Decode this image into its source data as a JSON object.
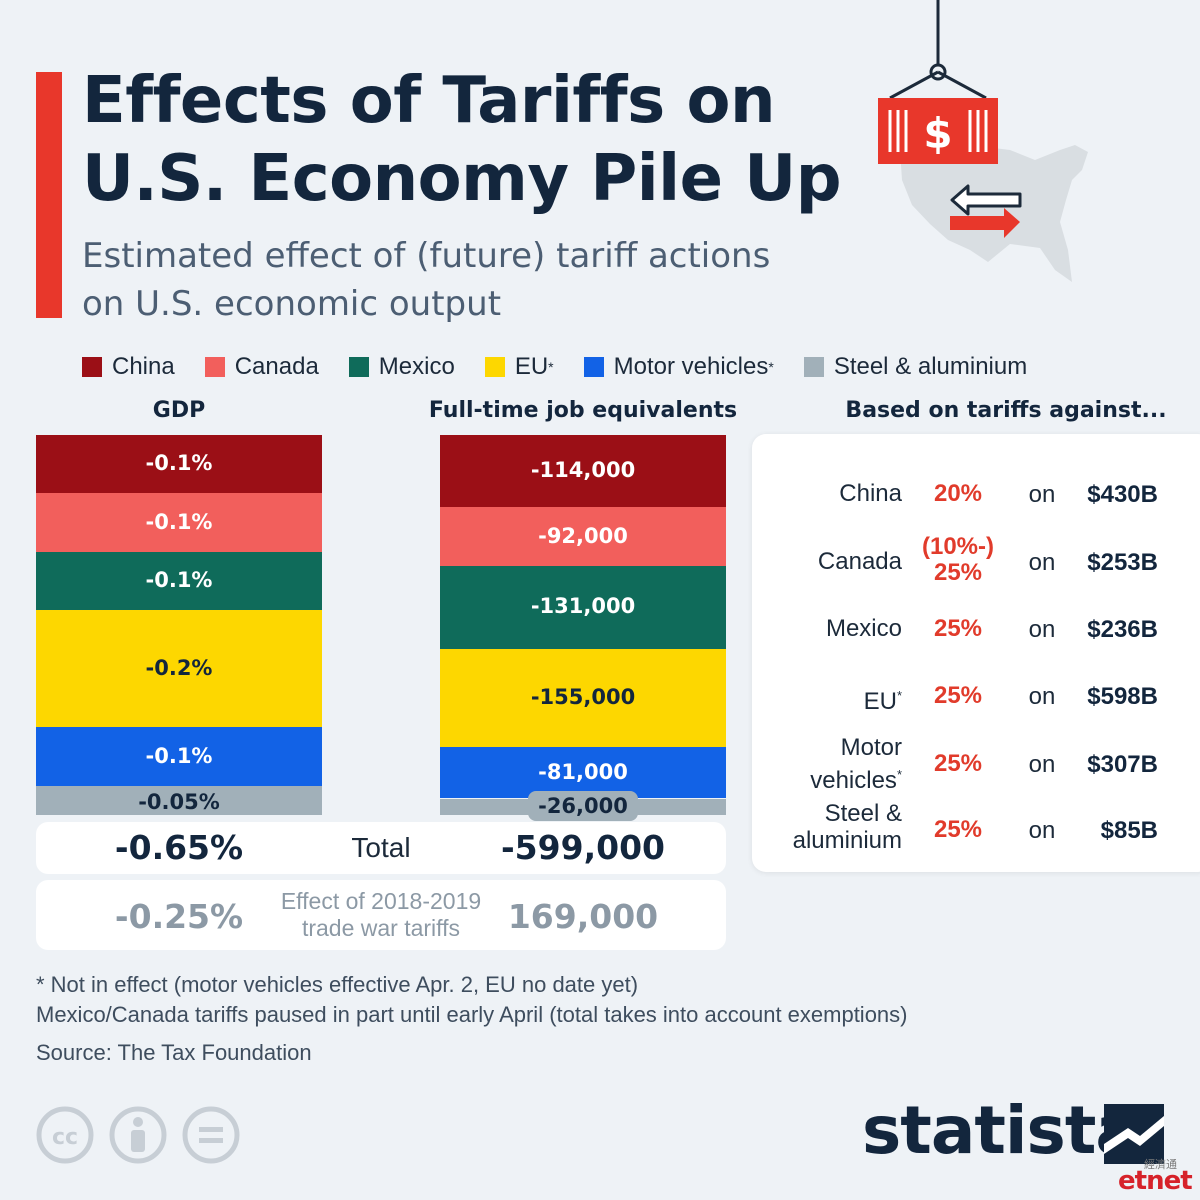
{
  "header": {
    "title_line1": "Effects of Tariffs on",
    "title_line2": "U.S. Economy Pile Up",
    "subtitle_line1": "Estimated effect of (future) tariff actions",
    "subtitle_line2": "on U.S. economic output"
  },
  "legend": [
    {
      "label": "China",
      "star": "",
      "color": "#9b0f16"
    },
    {
      "label": "Canada",
      "star": "",
      "color": "#f25f5c"
    },
    {
      "label": "Mexico",
      "star": "",
      "color": "#0f6b5a"
    },
    {
      "label": "EU",
      "star": "*",
      "color": "#fdd700"
    },
    {
      "label": "Motor vehicles",
      "star": "*",
      "color": "#1262e6"
    },
    {
      "label": "Steel & aluminium",
      "star": "",
      "color": "#a1b0b9"
    }
  ],
  "chart_data": [
    {
      "type": "bar",
      "title": "GDP",
      "categories": [
        "China",
        "Canada",
        "Mexico",
        "EU",
        "Motor vehicles",
        "Steel & aluminium"
      ],
      "values": [
        -0.1,
        -0.1,
        -0.1,
        -0.2,
        -0.1,
        -0.05
      ],
      "labels": [
        "-0.1%",
        "-0.1%",
        "-0.1%",
        "-0.2%",
        "-0.1%",
        "-0.05%"
      ],
      "total_label": "-0.65%",
      "trade_war_label": "-0.25%"
    },
    {
      "type": "bar",
      "title": "Full-time job equivalents",
      "categories": [
        "China",
        "Canada",
        "Mexico",
        "EU",
        "Motor vehicles",
        "Steel & aluminium"
      ],
      "values": [
        -114000,
        -92000,
        -131000,
        -155000,
        -81000,
        -26000
      ],
      "labels": [
        "-114,000",
        "-92,000",
        "-131,000",
        "-155,000",
        "-81,000",
        "-26,000"
      ],
      "total_label": "-599,000",
      "trade_war_label": "169,000"
    }
  ],
  "totals": {
    "label": "Total",
    "trade_war_line1": "Effect of 2018-2019",
    "trade_war_line2": "trade war tariffs"
  },
  "tariffs": {
    "heading": "Based on tariffs against...",
    "on_word": "on",
    "rows": [
      {
        "name1": "China",
        "name2": "",
        "star": "",
        "pct1": "20%",
        "pct2": "",
        "amount": "$430B"
      },
      {
        "name1": "Canada",
        "name2": "",
        "star": "",
        "pct1": "(10%-)",
        "pct2": "25%",
        "amount": "$253B"
      },
      {
        "name1": "Mexico",
        "name2": "",
        "star": "",
        "pct1": "25%",
        "pct2": "",
        "amount": "$236B"
      },
      {
        "name1": "EU",
        "name2": "",
        "star": "*",
        "pct1": "25%",
        "pct2": "",
        "amount": "$598B"
      },
      {
        "name1": "Motor",
        "name2": "vehicles",
        "star": "*",
        "pct1": "25%",
        "pct2": "",
        "amount": "$307B"
      },
      {
        "name1": "Steel &",
        "name2": "aluminium",
        "star": "",
        "pct1": "25%",
        "pct2": "",
        "amount": "$85B"
      }
    ]
  },
  "footer": {
    "note1": "* Not in effect (motor vehicles effective Apr. 2, EU no date yet)",
    "note2": "Mexico/Canada tariffs paused in part until early April (total takes into account exemptions)",
    "source": "Source: The Tax Foundation"
  },
  "branding": {
    "statista": "statista",
    "etnet": "etnet",
    "etnet_cn": "經濟通"
  },
  "icons": [
    "cc-icon",
    "attribution-icon",
    "no-derivatives-icon",
    "container-icon",
    "dollar-icon",
    "us-map-icon",
    "exchange-arrows-icon",
    "statista-logo-icon"
  ]
}
